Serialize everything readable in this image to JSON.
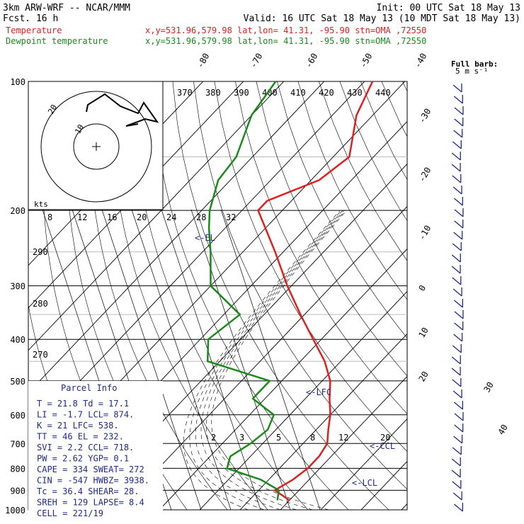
{
  "header": {
    "model": "3km ARW-WRF -- NCAR/MMM",
    "init": "Init: 00 UTC Sat 18 May 13",
    "fcst": "Fcst.   16 h",
    "valid": "Valid: 16 UTC Sat 18 May 13 (10 MDT Sat 18 May 13)",
    "temp_label": "Temperature",
    "temp_loc": "x,y=531.96,579.98   lat,lon= 41.31, -95.90   stn=OMA ,72550",
    "dew_label": "Dewpoint temperature",
    "dew_loc": "x,y=531.96,579.98   lat,lon= 41.31, -95.90   stn=OMA ,72550"
  },
  "colors": {
    "temperature": "#e02020",
    "dewpoint": "#1a8a1a",
    "annotation": "#1f2a8a",
    "isotherm": "#000000"
  },
  "chart_data": {
    "type": "line",
    "chart_kind": "Skew-T log-P sounding",
    "pressure_levels": [
      "100",
      "200",
      "300",
      "400",
      "500",
      "600",
      "700",
      "800",
      "900",
      "1000"
    ],
    "isotherm_labels": [
      "-80",
      "-70",
      "-60",
      "-50",
      "-40",
      "-30",
      "-20",
      "-10",
      "0",
      "10",
      "20",
      "30",
      "40"
    ],
    "theta_labels": [
      "370",
      "380",
      "390",
      "400",
      "410",
      "420",
      "430",
      "440",
      "290",
      "280",
      "270"
    ],
    "mixing_ratio_labels": [
      "2",
      "3",
      "5",
      "8",
      "12",
      "20"
    ],
    "wind_speed_labels": [
      "8",
      "12",
      "16",
      "20",
      "24",
      "28",
      "32"
    ],
    "wind_speed_unit": "kts",
    "hodograph_ring_labels": [
      "10",
      "20"
    ],
    "wind_barb_legend": "Full barb:\n5 m s⁻¹",
    "barb_count": 38,
    "annotations": [
      "<-EL",
      "<-LFC",
      "<-CCL",
      "<-LCL"
    ],
    "series": [
      {
        "name": "Temperature",
        "color": "#e02020",
        "p": [
          100,
          120,
          150,
          170,
          190,
          200,
          250,
          300,
          350,
          400,
          450,
          500,
          550,
          600,
          650,
          700,
          750,
          800,
          850,
          900,
          950
        ],
        "t": [
          -58,
          -54,
          -46,
          -48,
          -56,
          -56,
          -42,
          -31,
          -21,
          -12,
          -4,
          2,
          6,
          10,
          13,
          16,
          17,
          17,
          16,
          14,
          20
        ]
      },
      {
        "name": "Dewpoint temperature",
        "color": "#1a8a1a",
        "p": [
          100,
          120,
          150,
          170,
          200,
          220,
          250,
          300,
          350,
          400,
          450,
          500,
          550,
          600,
          650,
          700,
          750,
          800,
          850,
          900,
          950
        ],
        "t": [
          -82,
          -80,
          -74,
          -73,
          -68,
          -64,
          -58,
          -50,
          -36,
          -38,
          -33,
          -13,
          -13,
          -4,
          -2,
          -3,
          -5,
          -3,
          8,
          15,
          17
        ]
      }
    ]
  },
  "parcel_info": {
    "title": "Parcel Info",
    "rows": [
      "T  =    21.8  Td =  17.1",
      "LI =    -1.7  LCL=  874.",
      "K  =     21   LFC=  538.",
      "TT =     46   EL =  232.",
      "SVI =    2.2  CCL=  718.",
      "PW =    2.62  YGP=   0.1",
      "CAPE =   334  SWEAT=  272",
      "CIN =   -547  HWBZ= 3938.",
      "Tc =    36.4  SHEAR=  28.",
      "SREH =   129  LAPSE=  8.4",
      "CELL = 221/19"
    ]
  }
}
